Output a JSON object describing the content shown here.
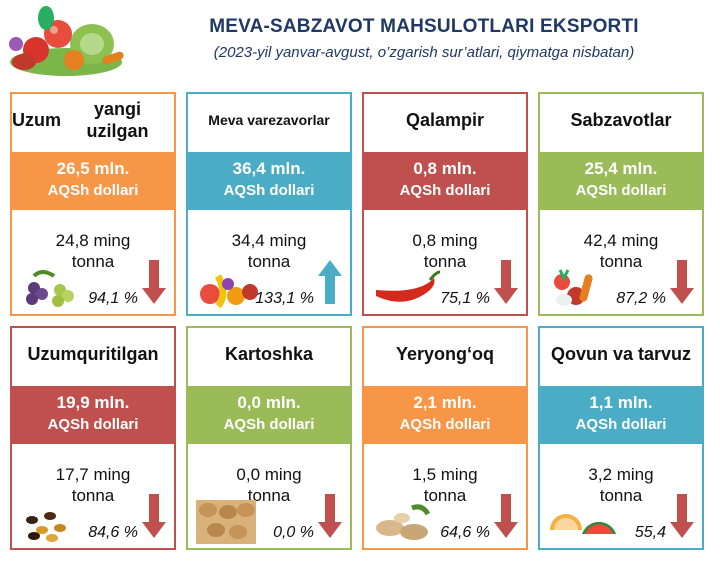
{
  "header": {
    "title": "MEVA-SABZAVOT MAHSULOTLARI EKSPORTI",
    "subtitle": "(2023-yil yanvar-avgust, o’zgarish sur’atlari, qiymatga nisbatan)"
  },
  "colors": {
    "orange": "#f79646",
    "blue": "#4bacc6",
    "red": "#c0504d",
    "green": "#9bbb59",
    "title": "#1f3864"
  },
  "cards": [
    {
      "name_line1": "Uzum",
      "name_line2": "yangi uzilgan",
      "value": "26,5 mln.",
      "unit": "AQSh dollari",
      "qty_line1": "24,8 ming",
      "qty_line2": "tonna",
      "pct": "94,1 %",
      "trend": "down",
      "color": "orange",
      "icon": "grapes-icon"
    },
    {
      "name_line1": "Meva va",
      "name_line2": "rezavorlar",
      "value": "36,4 mln.",
      "unit": "AQSh dollari",
      "qty_line1": "34,4 ming",
      "qty_line2": "tonna",
      "pct": "133,1 %",
      "trend": "up",
      "color": "blue",
      "icon": "fruit-basket-icon"
    },
    {
      "name_line1": "Qalampir",
      "name_line2": "",
      "value": "0,8 mln.",
      "unit": "AQSh dollari",
      "qty_line1": "0,8 ming",
      "qty_line2": "tonna",
      "pct": "75,1 %",
      "trend": "down",
      "color": "red",
      "icon": "chili-pepper-icon"
    },
    {
      "name_line1": "Sabzavotlar",
      "name_line2": "",
      "value": "25,4 mln.",
      "unit": "AQSh dollari",
      "qty_line1": "42,4 ming",
      "qty_line2": "tonna",
      "pct": "87,2 %",
      "trend": "down",
      "color": "green",
      "icon": "vegetables-icon"
    },
    {
      "name_line1": "Uzum",
      "name_line2": "quritilgan",
      "value": "19,9 mln.",
      "unit": "AQSh dollari",
      "qty_line1": "17,7 ming",
      "qty_line2": "tonna",
      "pct": "84,6 %",
      "trend": "down",
      "color": "red",
      "icon": "raisins-icon"
    },
    {
      "name_line1": "Kartoshka",
      "name_line2": "",
      "value": "0,0 mln.",
      "unit": "AQSh dollari",
      "qty_line1": "0,0 ming",
      "qty_line2": "tonna",
      "pct": "0,0 %",
      "trend": "down",
      "color": "green",
      "icon": "potatoes-icon"
    },
    {
      "name_line1": "Yeryong‘oq",
      "name_line2": "",
      "value": "2,1 mln.",
      "unit": "AQSh dollari",
      "qty_line1": "1,5 ming",
      "qty_line2": "tonna",
      "pct": "64,6 %",
      "trend": "down",
      "color": "orange",
      "icon": "peanuts-icon"
    },
    {
      "name_line1": "Qovun va tarvuz",
      "name_line2": "",
      "value": "1,1 mln.",
      "unit": "AQSh dollari",
      "qty_line1": "3,2 ming",
      "qty_line2": "tonna",
      "pct": "55,4",
      "trend": "down",
      "color": "blue",
      "icon": "melon-watermelon-icon"
    }
  ]
}
